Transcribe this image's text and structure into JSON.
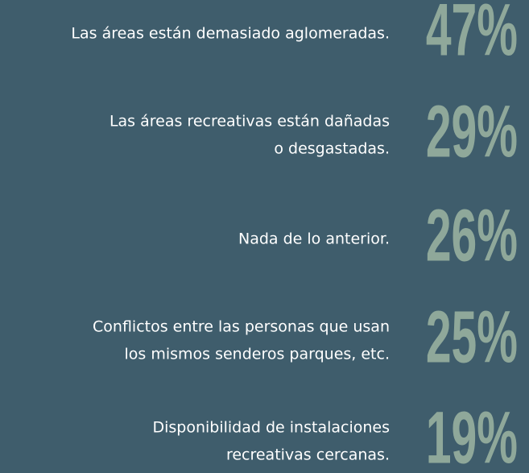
{
  "items": [
    {
      "lines": [
        "Las áreas están demasiado aglomeradas."
      ],
      "percent": "47%"
    },
    {
      "lines": [
        "Las áreas recreativas están dañadas",
        "o desgastadas."
      ],
      "percent": "29%"
    },
    {
      "lines": [
        "Nada de lo anterior."
      ],
      "percent": "26%"
    },
    {
      "lines": [
        "Conflictos entre las personas que usan",
        "los mismos senderos parques, etc."
      ],
      "percent": "25%"
    },
    {
      "lines": [
        "Disponibilidad de instalaciones",
        "recreativas cercanas."
      ],
      "percent": "19%"
    }
  ]
}
